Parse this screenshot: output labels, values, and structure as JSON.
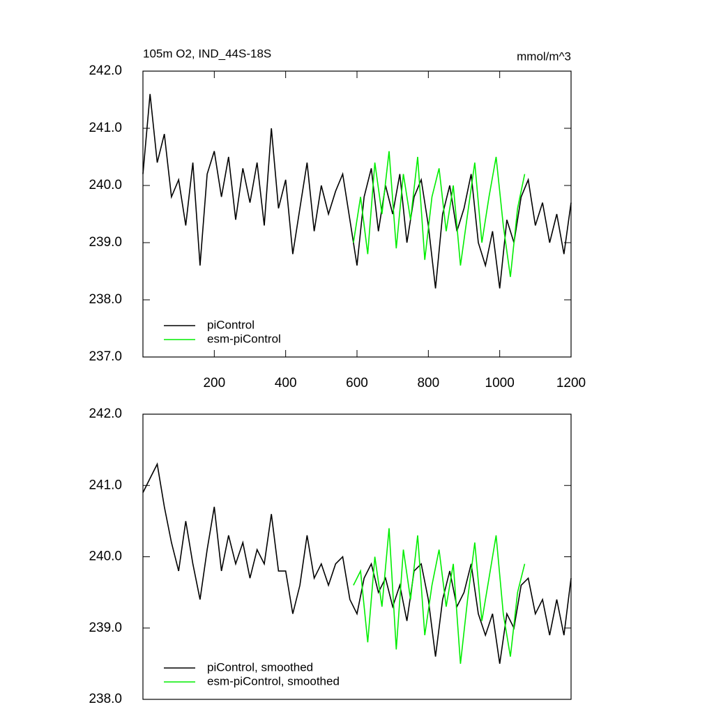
{
  "chart_data": [
    {
      "type": "line",
      "title": "105m O2, IND_44S-18S",
      "units": "mmol/m^3",
      "xlim": [
        0,
        1200
      ],
      "xticks": [
        200,
        400,
        600,
        800,
        1000,
        1200
      ],
      "ylim": [
        237,
        242
      ],
      "yticks": [
        {
          "value": 237,
          "label": "237.0"
        },
        {
          "value": 238,
          "label": "238.0"
        },
        {
          "value": 239,
          "label": "239.0"
        },
        {
          "value": 240,
          "label": "240.0"
        },
        {
          "value": 241,
          "label": "241.0"
        },
        {
          "value": 242,
          "label": "242.0"
        }
      ],
      "series": [
        {
          "name": "piControl",
          "color": "#000000",
          "x": [
            0,
            20,
            40,
            60,
            80,
            100,
            120,
            140,
            160,
            180,
            200,
            220,
            240,
            260,
            280,
            300,
            320,
            340,
            360,
            380,
            400,
            420,
            440,
            460,
            480,
            500,
            520,
            540,
            560,
            580,
            600,
            620,
            640,
            660,
            680,
            700,
            720,
            740,
            760,
            780,
            800,
            820,
            840,
            860,
            880,
            900,
            920,
            940,
            960,
            980,
            1000,
            1020,
            1040,
            1060,
            1080,
            1100,
            1120,
            1140,
            1160,
            1180,
            1200
          ],
          "values": [
            240.2,
            241.6,
            240.4,
            240.9,
            239.8,
            240.1,
            239.3,
            240.4,
            238.6,
            240.2,
            240.6,
            239.8,
            240.5,
            239.4,
            240.3,
            239.7,
            240.4,
            239.3,
            241.0,
            239.6,
            240.1,
            238.8,
            239.6,
            240.4,
            239.2,
            240.0,
            239.5,
            239.9,
            240.2,
            239.4,
            238.6,
            239.8,
            240.3,
            239.2,
            240.0,
            239.5,
            240.2,
            239.0,
            239.8,
            240.1,
            239.3,
            238.2,
            239.5,
            240.0,
            239.2,
            239.6,
            240.2,
            239.0,
            238.6,
            239.2,
            238.2,
            239.4,
            239.0,
            239.8,
            240.1,
            239.3,
            239.7,
            239.0,
            239.5,
            238.8,
            239.7
          ]
        },
        {
          "name": "esm-piControl",
          "color": "#00ee00",
          "x": [
            590,
            610,
            630,
            650,
            670,
            690,
            710,
            730,
            750,
            770,
            790,
            810,
            830,
            850,
            870,
            890,
            910,
            930,
            950,
            970,
            990,
            1010,
            1030,
            1050,
            1070
          ],
          "values": [
            239.0,
            239.8,
            238.8,
            240.4,
            239.5,
            240.6,
            238.9,
            240.2,
            239.4,
            240.5,
            238.7,
            239.8,
            240.3,
            239.2,
            240.0,
            238.6,
            239.5,
            240.4,
            239.0,
            239.8,
            240.5,
            239.3,
            238.4,
            239.6,
            240.2
          ]
        }
      ]
    },
    {
      "type": "line",
      "xlim": [
        0,
        1200
      ],
      "ylim": [
        238,
        242
      ],
      "yticks": [
        {
          "value": 238,
          "label": "238.0"
        },
        {
          "value": 239,
          "label": "239.0"
        },
        {
          "value": 240,
          "label": "240.0"
        },
        {
          "value": 241,
          "label": "241.0"
        },
        {
          "value": 242,
          "label": "242.0"
        }
      ],
      "series": [
        {
          "name": "piControl, smoothed",
          "color": "#000000",
          "x": [
            0,
            20,
            40,
            60,
            80,
            100,
            120,
            140,
            160,
            180,
            200,
            220,
            240,
            260,
            280,
            300,
            320,
            340,
            360,
            380,
            400,
            420,
            440,
            460,
            480,
            500,
            520,
            540,
            560,
            580,
            600,
            620,
            640,
            660,
            680,
            700,
            720,
            740,
            760,
            780,
            800,
            820,
            840,
            860,
            880,
            900,
            920,
            940,
            960,
            980,
            1000,
            1020,
            1040,
            1060,
            1080,
            1100,
            1120,
            1140,
            1160,
            1180,
            1200
          ],
          "values": [
            240.9,
            241.1,
            241.3,
            240.7,
            240.2,
            239.8,
            240.5,
            239.9,
            239.4,
            240.1,
            240.7,
            239.8,
            240.3,
            239.9,
            240.2,
            239.7,
            240.1,
            239.9,
            240.6,
            239.8,
            239.8,
            239.2,
            239.6,
            240.3,
            239.7,
            239.9,
            239.6,
            239.9,
            240.0,
            239.4,
            239.2,
            239.7,
            239.9,
            239.5,
            239.7,
            239.3,
            239.6,
            239.1,
            239.8,
            239.9,
            239.4,
            238.6,
            239.4,
            239.8,
            239.3,
            239.5,
            239.9,
            239.2,
            238.9,
            239.2,
            238.5,
            239.2,
            239.0,
            239.6,
            239.7,
            239.2,
            239.4,
            238.9,
            239.4,
            238.9,
            239.7
          ]
        },
        {
          "name": "esm-piControl, smoothed",
          "color": "#00ee00",
          "x": [
            590,
            610,
            630,
            650,
            670,
            690,
            710,
            730,
            750,
            770,
            790,
            810,
            830,
            850,
            870,
            890,
            910,
            930,
            950,
            970,
            990,
            1010,
            1030,
            1050,
            1070
          ],
          "values": [
            239.6,
            239.8,
            238.8,
            240.0,
            239.3,
            240.4,
            238.7,
            240.1,
            239.4,
            240.3,
            238.9,
            239.6,
            240.1,
            239.3,
            239.9,
            238.5,
            239.4,
            240.2,
            239.1,
            239.7,
            240.3,
            239.2,
            238.6,
            239.5,
            239.9
          ]
        }
      ]
    }
  ]
}
